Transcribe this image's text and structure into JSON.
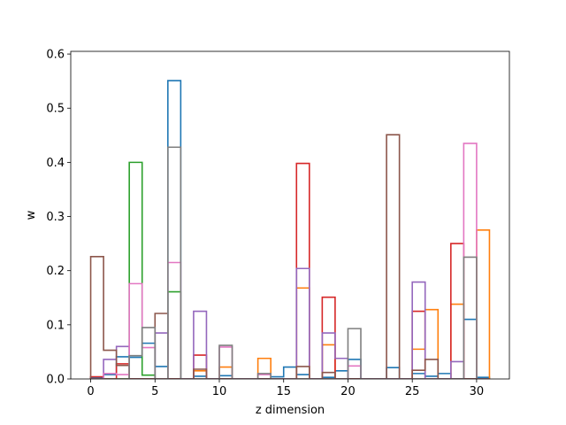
{
  "chart_data": {
    "type": "histogram-step",
    "title": "",
    "xlabel": "z dimension",
    "ylabel": "w",
    "xlim": [
      -1.55,
      32.55
    ],
    "ylim": [
      0,
      0.605
    ],
    "xticks": [
      0,
      5,
      10,
      15,
      20,
      25,
      30
    ],
    "yticks": [
      0.0,
      0.1,
      0.2,
      0.3,
      0.4,
      0.5,
      0.6
    ],
    "xtick_labels": [
      "0",
      "5",
      "10",
      "15",
      "20",
      "25",
      "30"
    ],
    "ytick_labels": [
      "0.0",
      "0.1",
      "0.2",
      "0.3",
      "0.4",
      "0.5",
      "0.6"
    ],
    "grid": false,
    "legend": false,
    "bins": [
      0,
      1,
      2,
      3,
      4,
      5,
      6,
      7,
      8,
      9,
      10,
      11,
      12,
      13,
      14,
      15,
      16,
      17,
      18,
      19,
      20,
      21,
      22,
      23,
      24,
      25,
      26,
      27,
      28,
      29,
      30,
      31
    ],
    "series": [
      {
        "color": "#1f77b4",
        "values": [
          0.003,
          0.008,
          0.041,
          0.04,
          0.066,
          0.023,
          0.551,
          0.0,
          0.005,
          0.0,
          0.006,
          0.0,
          0.0,
          0.0,
          0.004,
          0.022,
          0.008,
          0.0,
          0.003,
          0.015,
          0.036,
          0.0,
          0.0,
          0.021,
          0.0,
          0.01,
          0.005,
          0.01,
          0.0,
          0.11,
          0.003
        ]
      },
      {
        "color": "#ff7f0e",
        "values": [
          0.0,
          0.0,
          0.0,
          0.0,
          0.0,
          0.0,
          0.0,
          0.0,
          0.015,
          0.0,
          0.022,
          0.0,
          0.0,
          0.038,
          0.0,
          0.0,
          0.168,
          0.0,
          0.063,
          0.0,
          0.0,
          0.0,
          0.0,
          0.0,
          0.0,
          0.055,
          0.128,
          0.0,
          0.138,
          0.0,
          0.275
        ]
      },
      {
        "color": "#2ca02c",
        "values": [
          0.0,
          0.0,
          0.0,
          0.4,
          0.007,
          0.0,
          0.161,
          0.0,
          0.0,
          0.0,
          0.0,
          0.0,
          0.0,
          0.0,
          0.0,
          0.0,
          0.0,
          0.0,
          0.0,
          0.0,
          0.0,
          0.0,
          0.0,
          0.0,
          0.0,
          0.0,
          0.0,
          0.0,
          0.0,
          0.0,
          0.0
        ]
      },
      {
        "color": "#d62728",
        "values": [
          0.004,
          0.0,
          0.028,
          0.0,
          0.0,
          0.0,
          0.0,
          0.0,
          0.044,
          0.0,
          0.0,
          0.0,
          0.0,
          0.0,
          0.0,
          0.0,
          0.398,
          0.0,
          0.151,
          0.0,
          0.0,
          0.0,
          0.0,
          0.0,
          0.0,
          0.125,
          0.0,
          0.0,
          0.25,
          0.0,
          0.0
        ]
      },
      {
        "color": "#9467bd",
        "values": [
          0.0,
          0.036,
          0.06,
          0.0,
          0.0,
          0.085,
          0.0,
          0.0,
          0.125,
          0.0,
          0.0,
          0.0,
          0.0,
          0.0,
          0.0,
          0.0,
          0.204,
          0.0,
          0.085,
          0.038,
          0.0,
          0.0,
          0.0,
          0.0,
          0.0,
          0.179,
          0.0,
          0.0,
          0.032,
          0.0,
          0.0
        ]
      },
      {
        "color": "#8c564b",
        "values": [
          0.226,
          0.053,
          0.025,
          0.0,
          0.0,
          0.121,
          0.0,
          0.0,
          0.018,
          0.0,
          0.0,
          0.0,
          0.0,
          0.0,
          0.0,
          0.0,
          0.023,
          0.0,
          0.012,
          0.0,
          0.0,
          0.0,
          0.0,
          0.451,
          0.0,
          0.016,
          0.036,
          0.0,
          0.0,
          0.0,
          0.0
        ]
      },
      {
        "color": "#e377c2",
        "values": [
          0.0,
          0.01,
          0.008,
          0.176,
          0.058,
          0.0,
          0.215,
          0.0,
          0.0,
          0.0,
          0.059,
          0.0,
          0.0,
          0.008,
          0.0,
          0.0,
          0.0,
          0.0,
          0.0,
          0.0,
          0.024,
          0.0,
          0.0,
          0.0,
          0.0,
          0.0,
          0.0,
          0.0,
          0.0,
          0.435,
          0.0
        ]
      },
      {
        "color": "#7f7f7f",
        "values": [
          0.0,
          0.0,
          0.0,
          0.043,
          0.095,
          0.0,
          0.428,
          0.0,
          0.0,
          0.0,
          0.062,
          0.0,
          0.0,
          0.01,
          0.0,
          0.0,
          0.0,
          0.0,
          0.0,
          0.0,
          0.093,
          0.0,
          0.0,
          0.0,
          0.0,
          0.0,
          0.0,
          0.0,
          0.0,
          0.225,
          0.0
        ]
      }
    ]
  }
}
